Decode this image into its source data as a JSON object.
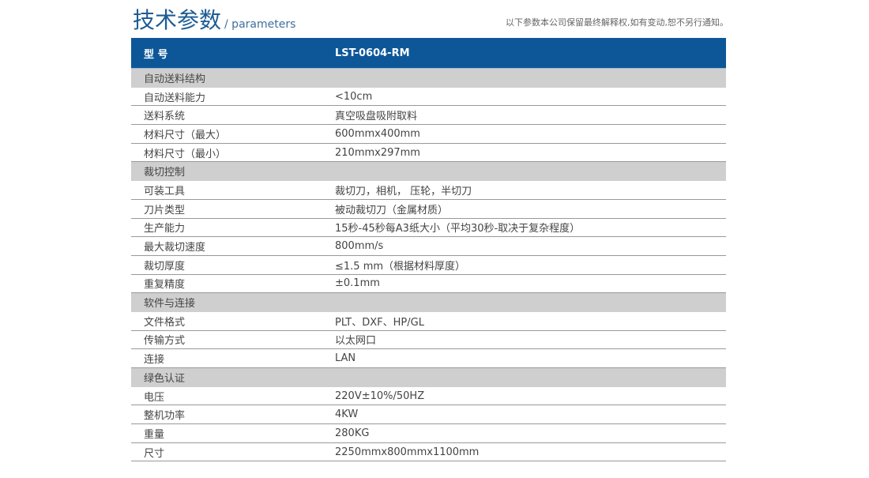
{
  "title": {
    "main": "技术参数",
    "sub": "/ parameters"
  },
  "note": "以下参数本公司保留最终解释权,如有变动,恕不另行通知。",
  "header": {
    "label": "型 号",
    "value": "LST-0604-RM"
  },
  "rows": [
    {
      "label": "自动送料结构",
      "value": "",
      "section": true
    },
    {
      "label": "自动送料能力",
      "value": "<10cm"
    },
    {
      "label": "送料系统",
      "value": "真空吸盘吸附取料"
    },
    {
      "label": "材料尺寸（最大）",
      "value": "600mmx400mm"
    },
    {
      "label": "材料尺寸（最小）",
      "value": "210mmx297mm"
    },
    {
      "label": "裁切控制",
      "value": "",
      "section": true
    },
    {
      "label": "可装工具",
      "value": "裁切刀，相机， 压轮，半切刀"
    },
    {
      "label": "刀片类型",
      "value": "被动裁切刀（金属材质）"
    },
    {
      "label": "生产能力",
      "value": "15秒-45秒每A3纸大小（平均30秒-取决于复杂程度）"
    },
    {
      "label": "最大裁切速度",
      "value": "800mm/s"
    },
    {
      "label": "裁切厚度",
      "value": "≤1.5 mm（根据材料厚度）"
    },
    {
      "label": "重复精度",
      "value": "±0.1mm"
    },
    {
      "label": "软件与连接",
      "value": "",
      "section": true
    },
    {
      "label": "文件格式",
      "value": "PLT、DXF、HP/GL"
    },
    {
      "label": "传输方式",
      "value": "以太网口"
    },
    {
      "label": "连接",
      "value": "LAN"
    },
    {
      "label": "绿色认证",
      "value": "",
      "section": true
    },
    {
      "label": "电压",
      "value": "220V±10%/50HZ"
    },
    {
      "label": "整机功率",
      "value": "4KW"
    },
    {
      "label": "重量",
      "value": "280KG"
    },
    {
      "label": "尺寸",
      "value": "2250mmx800mmx1100mm"
    }
  ]
}
